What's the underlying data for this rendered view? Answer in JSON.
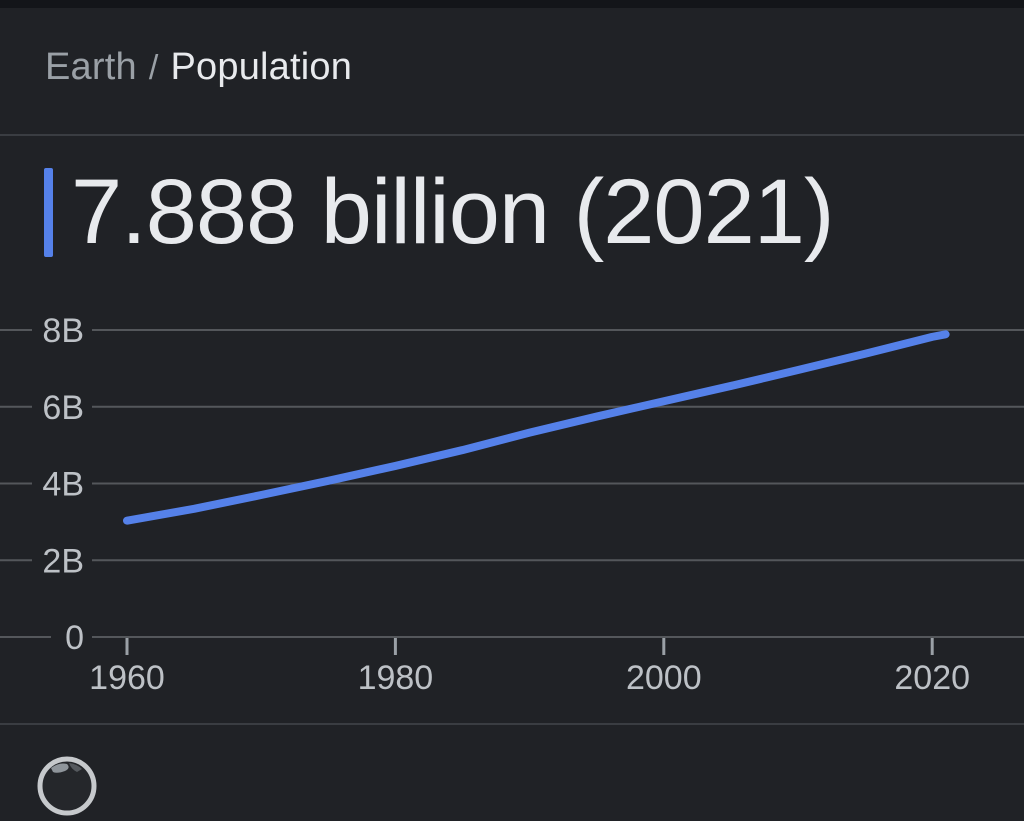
{
  "breadcrumb": {
    "entity": "Earth",
    "separator": "/",
    "attribute": "Population"
  },
  "headline": {
    "value": "7.888 billion (2021)"
  },
  "footer": {
    "icon": "globe-icon"
  },
  "colors": {
    "background": "#202226",
    "accent_blue": "#5581e9",
    "grid": "#54575b",
    "divider": "#3a3d42",
    "axis_text": "#bdc1c6",
    "axis_tick": "#9aa0a6",
    "breadcrumb_muted": "#9aa0a6",
    "text_primary": "#e8eaed"
  },
  "chart_data": {
    "type": "line",
    "units": "billions of people",
    "x": [
      1960,
      1965,
      1970,
      1975,
      1980,
      1985,
      1990,
      1995,
      2000,
      2005,
      2010,
      2015,
      2020,
      2021
    ],
    "series": [
      {
        "name": "Population",
        "values": [
          3.032,
          3.34,
          3.7,
          4.07,
          4.458,
          4.871,
          5.327,
          5.744,
          6.144,
          6.542,
          6.957,
          7.38,
          7.821,
          7.888
        ]
      }
    ],
    "xticks": [
      1960,
      1980,
      2000,
      2020
    ],
    "yticks": [
      {
        "v": 0,
        "label": "0"
      },
      {
        "v": 2,
        "label": "2B"
      },
      {
        "v": 4,
        "label": "4B"
      },
      {
        "v": 6,
        "label": "6B"
      },
      {
        "v": 8,
        "label": "8B"
      }
    ],
    "xlim": [
      1960,
      2021
    ],
    "ylim": [
      0,
      8.8
    ],
    "grid": true,
    "legend": "none"
  }
}
